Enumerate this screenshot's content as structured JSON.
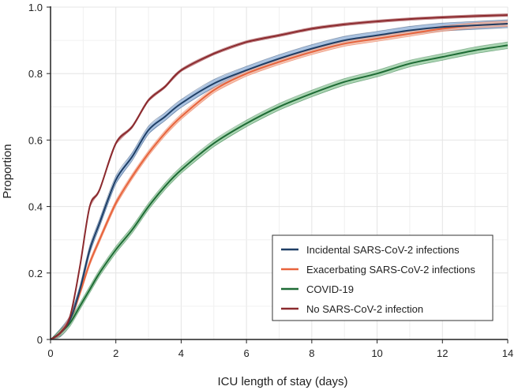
{
  "chart_data": {
    "type": "line",
    "xlabel": "ICU length of stay (days)",
    "ylabel": "Proportion",
    "xlim": [
      0,
      14
    ],
    "ylim": [
      0,
      1.0
    ],
    "x_ticks": [
      0,
      2,
      4,
      6,
      8,
      10,
      12,
      14
    ],
    "y_ticks": [
      0,
      0.2,
      0.4,
      0.6,
      0.8,
      1.0
    ],
    "x_tick_labels": [
      "0",
      "2",
      "4",
      "6",
      "8",
      "10",
      "12",
      "14"
    ],
    "y_tick_labels": [
      "0",
      "0.2",
      "0.4",
      "0.6",
      "0.8",
      "1.0"
    ],
    "grid": true,
    "legend_position": "bottom-right",
    "confidence_bands": true,
    "series": [
      {
        "name": "Incidental SARS-CoV-2 infections",
        "color": "#1f3f66",
        "band_color": "#8eaed6",
        "x": [
          0,
          0.3,
          0.6,
          0.9,
          1.2,
          1.5,
          2,
          2.5,
          3,
          3.5,
          4,
          5,
          6,
          7,
          8,
          9,
          10,
          11,
          12,
          13,
          14
        ],
        "y": [
          0,
          0.02,
          0.06,
          0.15,
          0.27,
          0.35,
          0.48,
          0.55,
          0.63,
          0.67,
          0.71,
          0.77,
          0.81,
          0.845,
          0.875,
          0.9,
          0.915,
          0.93,
          0.94,
          0.945,
          0.95
        ],
        "band_halfwidth": 0.012
      },
      {
        "name": "Exacerbating SARS-CoV-2 infections",
        "color": "#e8643c",
        "band_color": "#f3b49e",
        "x": [
          0,
          0.3,
          0.6,
          0.9,
          1.2,
          1.5,
          2,
          2.5,
          3,
          3.5,
          4,
          5,
          6,
          7,
          8,
          9,
          10,
          11,
          12,
          13,
          14
        ],
        "y": [
          0,
          0.02,
          0.06,
          0.14,
          0.23,
          0.3,
          0.41,
          0.49,
          0.56,
          0.62,
          0.67,
          0.75,
          0.8,
          0.835,
          0.865,
          0.89,
          0.905,
          0.92,
          0.935,
          0.945,
          0.95
        ],
        "band_halfwidth": 0.008
      },
      {
        "name": "COVID-19",
        "color": "#1e6b35",
        "band_color": "#8fc79a",
        "x": [
          0,
          0.3,
          0.6,
          0.9,
          1.2,
          1.5,
          2,
          2.5,
          3,
          3.5,
          4,
          5,
          6,
          7,
          8,
          9,
          10,
          11,
          12,
          13,
          14
        ],
        "y": [
          0,
          0.02,
          0.05,
          0.1,
          0.15,
          0.2,
          0.27,
          0.33,
          0.4,
          0.46,
          0.51,
          0.59,
          0.65,
          0.7,
          0.74,
          0.775,
          0.8,
          0.83,
          0.85,
          0.87,
          0.885
        ],
        "band_halfwidth": 0.01
      },
      {
        "name": "No SARS-CoV-2 infection",
        "color": "#8b2a2e",
        "band_color": "#c98a8c",
        "x": [
          0,
          0.3,
          0.6,
          0.9,
          1.2,
          1.5,
          2,
          2.5,
          3,
          3.5,
          4,
          5,
          6,
          7,
          8,
          9,
          10,
          11,
          12,
          13,
          14
        ],
        "y": [
          0,
          0.02,
          0.07,
          0.22,
          0.4,
          0.45,
          0.59,
          0.64,
          0.72,
          0.76,
          0.81,
          0.86,
          0.895,
          0.915,
          0.935,
          0.948,
          0.957,
          0.964,
          0.969,
          0.973,
          0.976
        ],
        "band_halfwidth": 0.004
      }
    ]
  }
}
